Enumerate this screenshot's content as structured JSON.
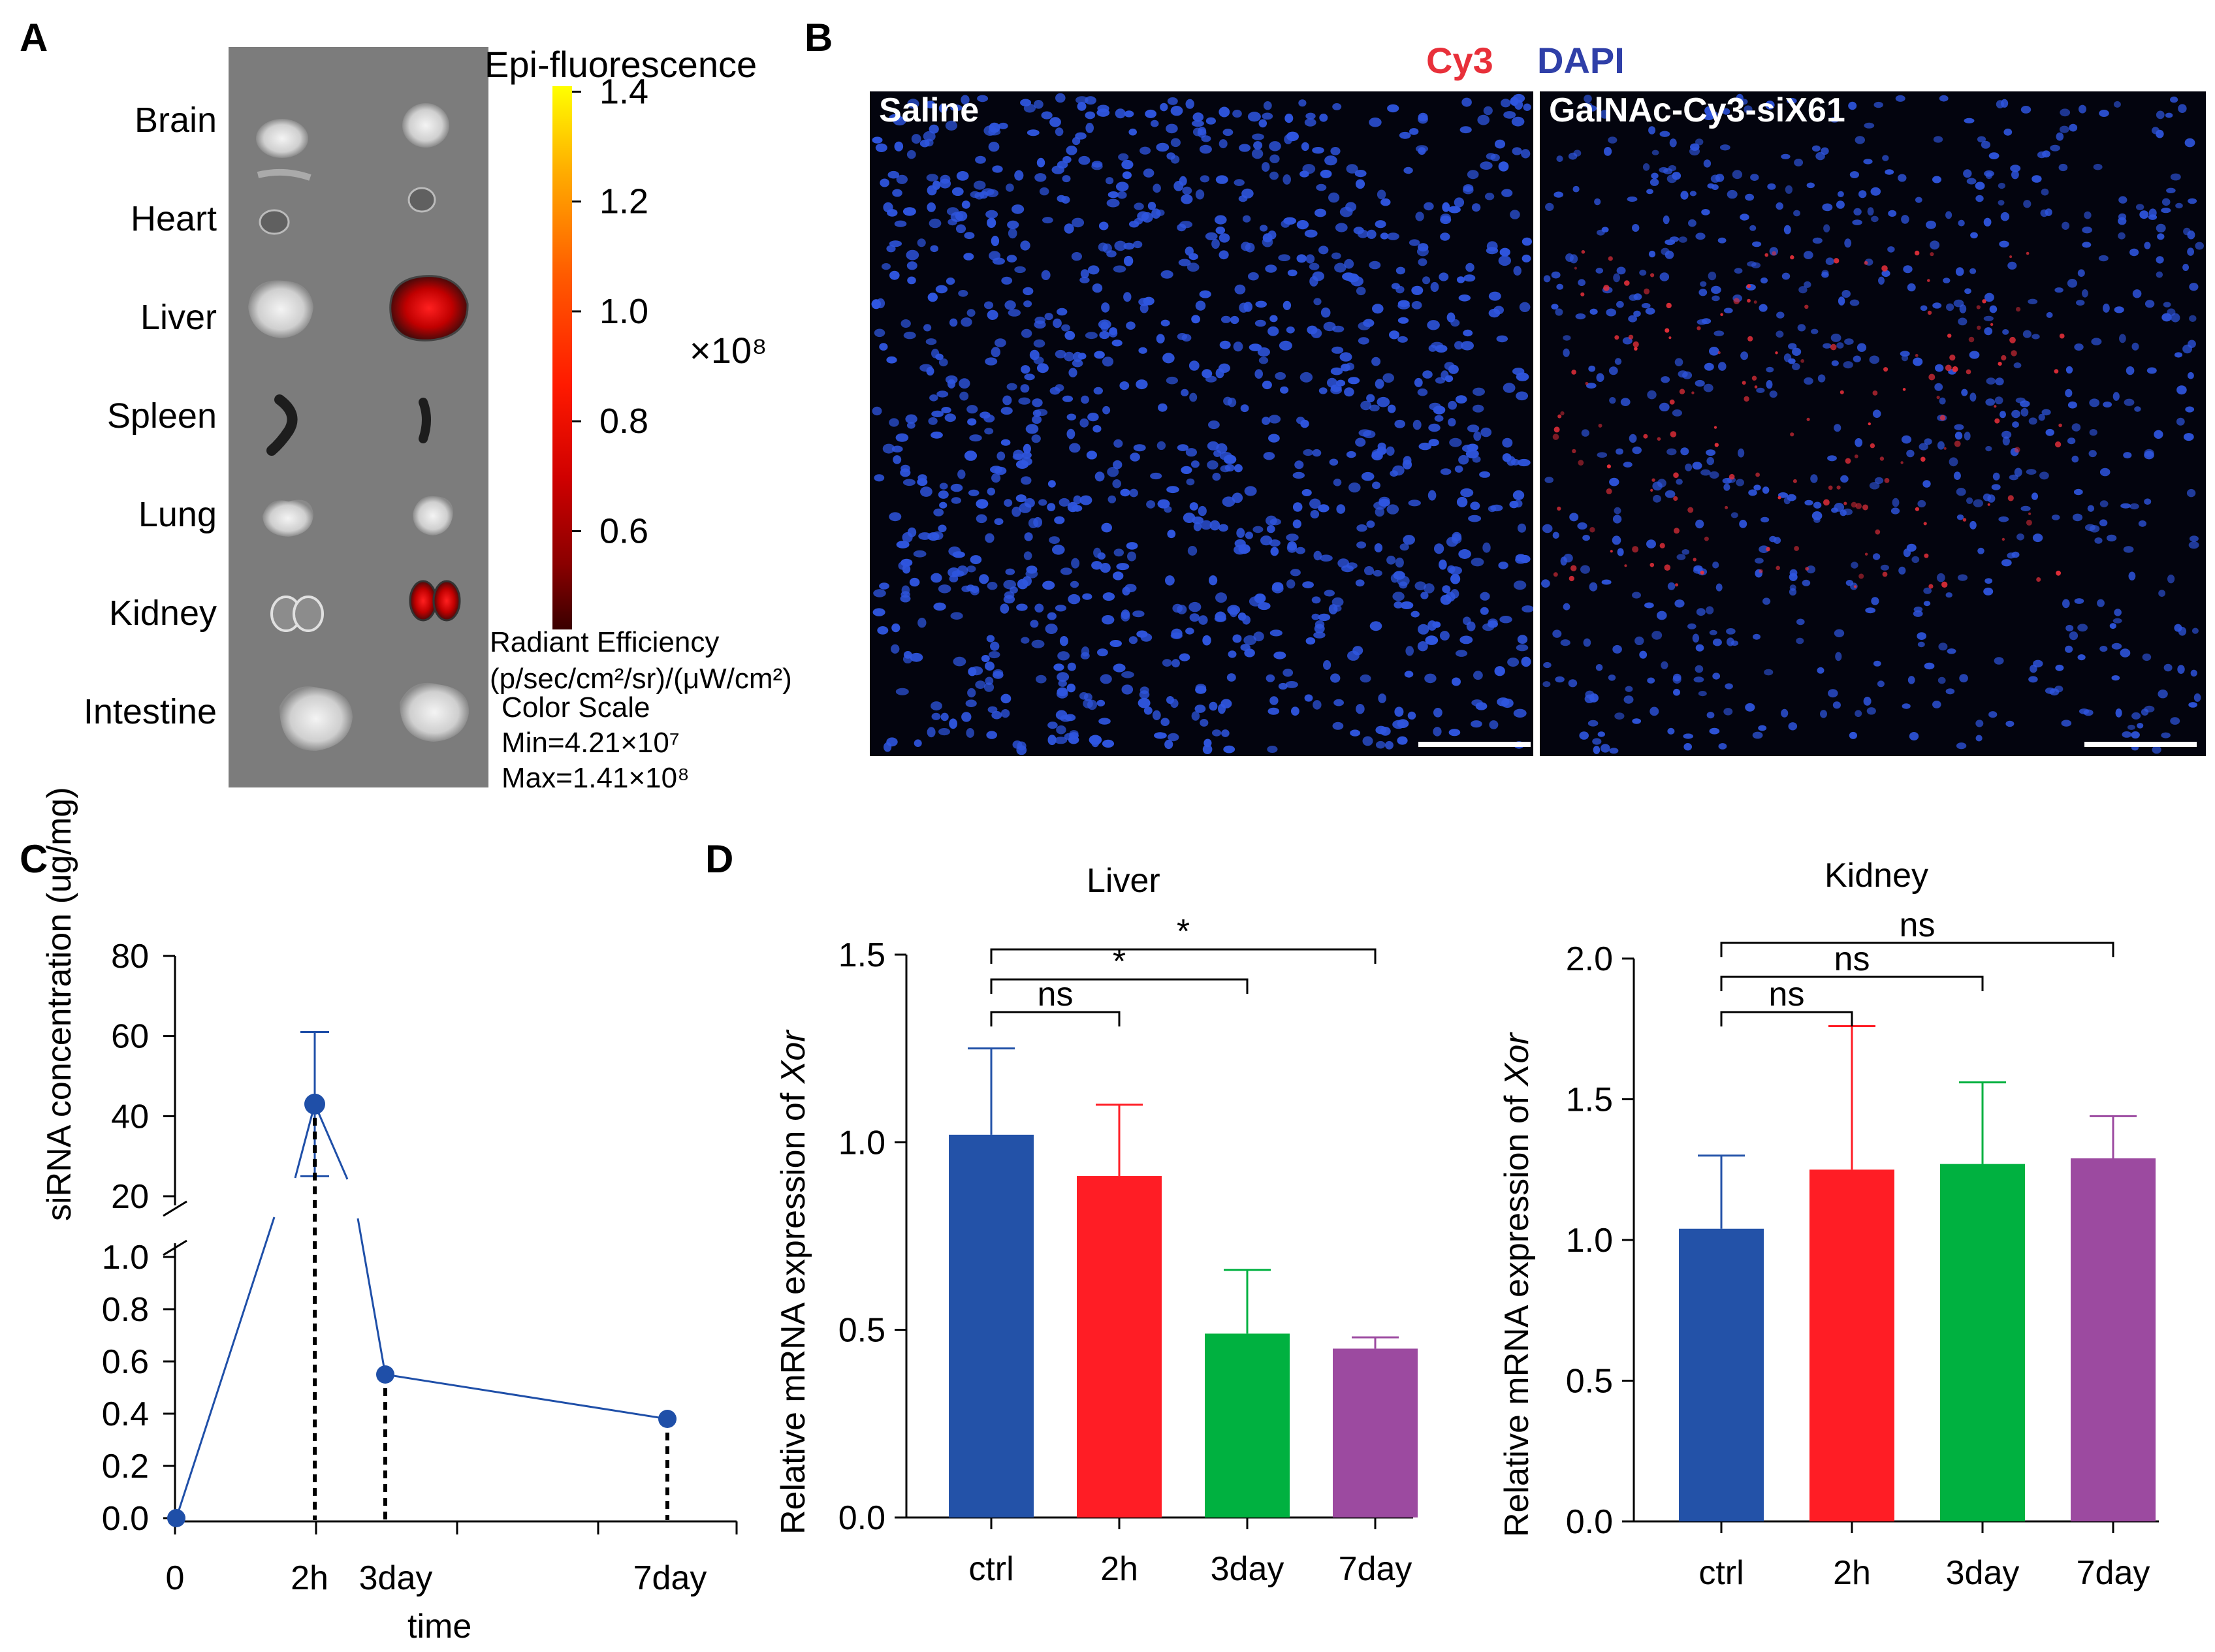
{
  "panels": {
    "A": "A",
    "B": "B",
    "C": "C",
    "D": "D"
  },
  "panelA": {
    "organs": [
      "Brain",
      "Heart",
      "Liver",
      "Spleen",
      "Lung",
      "Kidney",
      "Intestine"
    ],
    "colorbar": {
      "title": "Epi-fluorescence",
      "ticks": [
        "1.4",
        "1.2",
        "1.0",
        "0.8",
        "0.6"
      ],
      "tick_values": [
        1.4,
        1.2,
        1.0,
        0.8,
        0.6
      ],
      "multiplier": "×10⁸",
      "unit_line1": "Radiant Efficiency",
      "unit_line2": "(p/sec/cm²/sr)/(μW/cm²)",
      "scale_title": "Color Scale",
      "min_text": "Min=4.21×10⁷",
      "max_text": "Max=1.41×10⁸",
      "gradient_colors": [
        "#ffff00",
        "#ffb000",
        "#ff5a00",
        "#ff1a00",
        "#d00000",
        "#8a0000",
        "#3a0000"
      ]
    }
  },
  "panelB": {
    "legend_cy3": "Cy3",
    "legend_dapi": "DAPI",
    "cy3_color": "#e8303a",
    "dapi_color": "#2f3fa8",
    "left_label": "Saline",
    "right_label": "GalNAc-Cy3-siX61"
  },
  "chart_data": [
    {
      "panel": "C",
      "type": "line",
      "xlabel": "time",
      "ylabel": "siRNA concentration (ug/mg)",
      "x_tick_labels": [
        "0",
        "2h",
        "3day",
        "7day"
      ],
      "y_tick_labels_upper": [
        "80",
        "60",
        "40",
        "20"
      ],
      "y_tick_labels_lower": [
        "1.0",
        "0.8",
        "0.6",
        "0.4",
        "0.2",
        "0.0"
      ],
      "axis_break": "between 1.0 and 20",
      "points": [
        {
          "x": "0",
          "y": 0.0
        },
        {
          "x": "2h",
          "y": 43,
          "err": 18
        },
        {
          "x": "3day",
          "y": 0.55
        },
        {
          "x": "7day",
          "y": 0.38
        }
      ],
      "color": "#1f4fa8"
    },
    {
      "panel": "D",
      "type": "bar",
      "title": "Liver",
      "ylabel": "Relative mRNA expression of Xor",
      "ylabel_main": "Relative mRNA expression of ",
      "ylabel_gene": "Xor",
      "categories": [
        "ctrl",
        "2h",
        "3day",
        "7day"
      ],
      "values": [
        1.02,
        0.91,
        0.49,
        0.45
      ],
      "errors": [
        0.23,
        0.19,
        0.17,
        0.03
      ],
      "colors": [
        "#2352a8",
        "#ff1d25",
        "#00b140",
        "#9c4aa0"
      ],
      "ylim": [
        0,
        1.5
      ],
      "y_tick_labels": [
        "0.0",
        "0.5",
        "1.0",
        "1.5"
      ],
      "significance": [
        {
          "label": "ns",
          "from": "ctrl",
          "to": "2h"
        },
        {
          "label": "*",
          "from": "ctrl",
          "to": "3day"
        },
        {
          "label": "*",
          "from": "ctrl",
          "to": "7day"
        }
      ]
    },
    {
      "panel": "D",
      "type": "bar",
      "title": "Kidney",
      "ylabel": "Relative mRNA expression of Xor",
      "ylabel_main": "Relative mRNA expression of ",
      "ylabel_gene": "Xor",
      "categories": [
        "ctrl",
        "2h",
        "3day",
        "7day"
      ],
      "values": [
        1.04,
        1.25,
        1.27,
        1.29
      ],
      "errors": [
        0.26,
        0.51,
        0.29,
        0.15
      ],
      "colors": [
        "#2352a8",
        "#ff1d25",
        "#00b140",
        "#9c4aa0"
      ],
      "ylim": [
        0,
        2.0
      ],
      "y_tick_labels": [
        "0.0",
        "0.5",
        "1.0",
        "1.5",
        "2.0"
      ],
      "significance": [
        {
          "label": "ns",
          "from": "ctrl",
          "to": "2h"
        },
        {
          "label": "ns",
          "from": "ctrl",
          "to": "3day"
        },
        {
          "label": "ns",
          "from": "ctrl",
          "to": "7day"
        }
      ]
    }
  ]
}
